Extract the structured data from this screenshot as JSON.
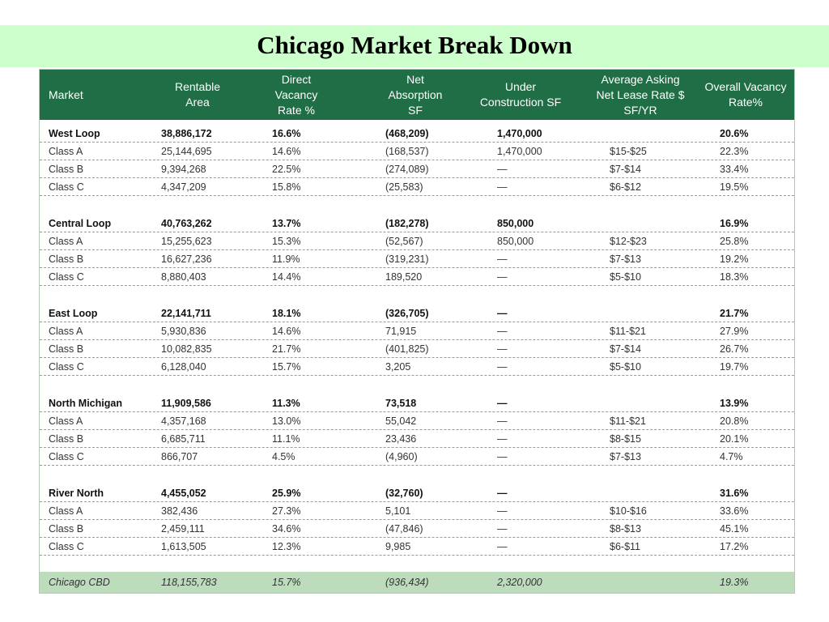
{
  "title": "Chicago Market Break Down",
  "colors": {
    "title_band": "#ccffcc",
    "header_bg": "#1f6e45",
    "total_bg": "#bcdcbc"
  },
  "chart_data": {
    "type": "table",
    "columns": [
      "Market",
      "Rentable\nArea",
      "Direct\nVacancy\nRate %",
      "Net\nAbsorption\nSF",
      "Under\nConstruction SF",
      "Average Asking\nNet Lease Rate $\nSF/YR",
      "Overall Vacancy\nRate%"
    ],
    "groups": [
      {
        "summary": [
          "West Loop",
          "38,886,172",
          "16.6%",
          "(468,209)",
          "1,470,000",
          "",
          "20.6%"
        ],
        "rows": [
          [
            "Class A",
            "25,144,695",
            "14.6%",
            "(168,537)",
            "1,470,000",
            "$15-$25",
            "22.3%"
          ],
          [
            "Class B",
            "9,394,268",
            "22.5%",
            "(274,089)",
            "—",
            "$7-$14",
            "33.4%"
          ],
          [
            "Class C",
            "4,347,209",
            "15.8%",
            "(25,583)",
            "—",
            "$6-$12",
            "19.5%"
          ]
        ]
      },
      {
        "summary": [
          "Central Loop",
          "40,763,262",
          "13.7%",
          "(182,278)",
          "850,000",
          "",
          "16.9%"
        ],
        "rows": [
          [
            "Class A",
            "15,255,623",
            "15.3%",
            "(52,567)",
            "850,000",
            "$12-$23",
            "25.8%"
          ],
          [
            "Class B",
            "16,627,236",
            "11.9%",
            "(319,231)",
            "—",
            "$7-$13",
            "19.2%"
          ],
          [
            "Class C",
            "8,880,403",
            "14.4%",
            "189,520",
            "—",
            "$5-$10",
            "18.3%"
          ]
        ]
      },
      {
        "summary": [
          "East Loop",
          "22,141,711",
          "18.1%",
          "(326,705)",
          "—",
          "",
          "21.7%"
        ],
        "rows": [
          [
            "Class A",
            "5,930,836",
            "14.6%",
            "71,915",
            "—",
            "$11-$21",
            "27.9%"
          ],
          [
            "Class B",
            "10,082,835",
            "21.7%",
            "(401,825)",
            "—",
            "$7-$14",
            "26.7%"
          ],
          [
            "Class C",
            "6,128,040",
            "15.7%",
            "3,205",
            "—",
            "$5-$10",
            "19.7%"
          ]
        ]
      },
      {
        "summary": [
          "North Michigan",
          "11,909,586",
          "11.3%",
          "73,518",
          "—",
          "",
          "13.9%"
        ],
        "rows": [
          [
            "Class A",
            "4,357,168",
            "13.0%",
            "55,042",
            "—",
            "$11-$21",
            "20.8%"
          ],
          [
            "Class B",
            "6,685,711",
            "11.1%",
            "23,436",
            "—",
            "$8-$15",
            "20.1%"
          ],
          [
            "Class C",
            "866,707",
            "4.5%",
            "(4,960)",
            "—",
            "$7-$13",
            "4.7%"
          ]
        ]
      },
      {
        "summary": [
          "River North",
          "4,455,052",
          "25.9%",
          "(32,760)",
          "—",
          "",
          "31.6%"
        ],
        "rows": [
          [
            "Class A",
            "382,436",
            "27.3%",
            "5,101",
            "—",
            "$10-$16",
            "33.6%"
          ],
          [
            "Class B",
            "2,459,111",
            "34.6%",
            "(47,846)",
            "—",
            "$8-$13",
            "45.1%"
          ],
          [
            "Class C",
            "1,613,505",
            "12.3%",
            "9,985",
            "—",
            "$6-$11",
            "17.2%"
          ]
        ]
      }
    ],
    "total": [
      "Chicago CBD",
      "118,155,783",
      "15.7%",
      "(936,434)",
      "2,320,000",
      "",
      "19.3%"
    ]
  }
}
